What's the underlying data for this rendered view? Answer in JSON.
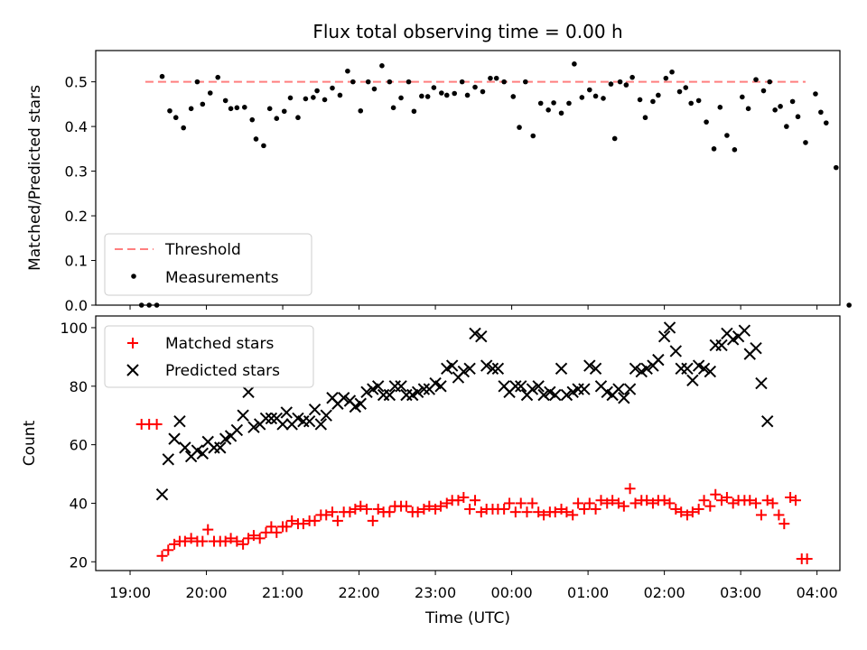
{
  "chart_data": {
    "title": "Flux total observing time = 0.00 h",
    "xlabel": "Time (UTC)",
    "x_tick_labels": [
      "19:00",
      "20:00",
      "21:00",
      "22:00",
      "23:00",
      "00:00",
      "01:00",
      "02:00",
      "03:00",
      "04:00"
    ],
    "x_range_hours": [
      18.55,
      28.3
    ],
    "top": {
      "type": "scatter",
      "ylabel": "Matched/Predicted stars",
      "ylim": [
        0,
        0.57
      ],
      "yticks": [
        "0.0",
        "0.1",
        "0.2",
        "0.3",
        "0.4",
        "0.5"
      ],
      "legend_position": "lower-left",
      "threshold": {
        "name": "Threshold",
        "value": 0.5,
        "x_range": [
          19.2,
          27.85
        ],
        "color": "#ff7f7f"
      },
      "measurements": {
        "name": "Measurements",
        "color": "#000000",
        "x": [
          19.15,
          19.25,
          19.35,
          19.42,
          19.52,
          19.6,
          19.7,
          19.8,
          19.88,
          19.95,
          20.05,
          20.15,
          20.25,
          20.32,
          20.4,
          20.5,
          20.6,
          20.65,
          20.75,
          20.83,
          20.92,
          21.02,
          21.1,
          21.2,
          21.3,
          21.4,
          21.45,
          21.55,
          21.65,
          21.75,
          21.85,
          21.92,
          22.02,
          22.12,
          22.2,
          22.3,
          22.4,
          22.45,
          22.55,
          22.65,
          22.72,
          22.82,
          22.9,
          22.98,
          23.08,
          23.15,
          23.25,
          23.35,
          23.42,
          23.52,
          23.62,
          23.72,
          23.8,
          23.9,
          24.02,
          24.1,
          24.18,
          24.28,
          24.38,
          24.48,
          24.55,
          24.65,
          24.75,
          24.82,
          24.92,
          25.02,
          25.1,
          25.2,
          25.3,
          25.35,
          25.42,
          25.5,
          25.58,
          25.68,
          25.75,
          25.85,
          25.92,
          26.02,
          26.1,
          26.2,
          26.28,
          26.35,
          26.45,
          26.55,
          26.65,
          26.73,
          26.82,
          26.92,
          27.02,
          27.1,
          27.2,
          27.3,
          27.38,
          27.45,
          27.52,
          27.6,
          27.68,
          27.75,
          27.85
        ],
        "y": [
          0.0,
          0.0,
          0.0,
          0.512,
          0.435,
          0.42,
          0.397,
          0.44,
          0.5,
          0.45,
          0.475,
          0.51,
          0.458,
          0.44,
          0.442,
          0.443,
          0.415,
          0.372,
          0.357,
          0.44,
          0.418,
          0.434,
          0.464,
          0.42,
          0.462,
          0.465,
          0.48,
          0.46,
          0.486,
          0.47,
          0.524,
          0.5,
          0.435,
          0.5,
          0.484,
          0.536,
          0.5,
          0.442,
          0.464,
          0.5,
          0.434,
          0.468,
          0.467,
          0.487,
          0.475,
          0.47,
          0.474,
          0.5,
          0.47,
          0.488,
          0.478,
          0.508,
          0.508,
          0.5,
          0.467,
          0.398,
          0.5,
          0.379,
          0.452,
          0.437,
          0.453,
          0.43,
          0.452,
          0.54,
          0.465,
          0.482,
          0.468,
          0.463,
          0.495,
          0.373,
          0.5,
          0.493,
          0.51,
          0.46,
          0.42,
          0.456,
          0.47,
          0.508,
          0.522,
          0.478,
          0.487,
          0.452,
          0.458,
          0.41,
          0.35,
          0.443,
          0.38,
          0.348,
          0.466,
          0.44,
          0.505,
          0.48,
          0.5,
          0.437,
          0.445,
          0.4,
          0.456,
          0.422,
          0.364
        ],
        "x_tail": [
          27.98,
          28.05,
          28.12,
          28.25
        ],
        "y_tail": [
          0.473,
          0.432,
          0.408,
          0.308
        ]
      }
    },
    "bottom": {
      "type": "scatter",
      "ylabel": "Count",
      "ylim": [
        17,
        104
      ],
      "yticks": [
        "20",
        "40",
        "60",
        "80",
        "100"
      ],
      "legend_position": "upper-left",
      "series": [
        {
          "name": "Matched stars",
          "marker": "plus",
          "color": "#ff0000"
        },
        {
          "name": "Predicted stars",
          "marker": "x",
          "color": "#000000"
        }
      ],
      "x": [
        19.15,
        19.25,
        19.35,
        19.42,
        19.5,
        19.58,
        19.65,
        19.72,
        19.8,
        19.88,
        19.95,
        20.02,
        20.1,
        20.18,
        20.25,
        20.32,
        20.4,
        20.48,
        20.55,
        20.62,
        20.7,
        20.78,
        20.85,
        20.92,
        21.0,
        21.05,
        21.12,
        21.2,
        21.27,
        21.35,
        21.42,
        21.5,
        21.57,
        21.65,
        21.72,
        21.8,
        21.88,
        21.95,
        22.02,
        22.1,
        22.18,
        22.25,
        22.32,
        22.4,
        22.47,
        22.55,
        22.62,
        22.7,
        22.77,
        22.85,
        22.92,
        23.0,
        23.07,
        23.15,
        23.22,
        23.3,
        23.37,
        23.45,
        23.52,
        23.6,
        23.67,
        23.75,
        23.82,
        23.9,
        23.97,
        24.05,
        24.12,
        24.2,
        24.27,
        24.35,
        24.42,
        24.5,
        24.57,
        24.65,
        24.72,
        24.8,
        24.87,
        24.95,
        25.02,
        25.1,
        25.17,
        25.25,
        25.32,
        25.4,
        25.47,
        25.55,
        25.62,
        25.7,
        25.77,
        25.85,
        25.92,
        26.0,
        26.07,
        26.15,
        26.22,
        26.3,
        26.37,
        26.45,
        26.52,
        26.6,
        26.67,
        26.75,
        26.82,
        26.9,
        26.97,
        27.05,
        27.12,
        27.2,
        27.27,
        27.35,
        27.42,
        27.5,
        27.57,
        27.65,
        27.72,
        27.8,
        27.87
      ],
      "matched": [
        67,
        67,
        67,
        22,
        24,
        26,
        27,
        27,
        28,
        27,
        27,
        31,
        27,
        27,
        27,
        28,
        27,
        26,
        28,
        29,
        28,
        30,
        32,
        30,
        32,
        32,
        34,
        33,
        33,
        34,
        34,
        36,
        36,
        37,
        34,
        37,
        37,
        38,
        39,
        38,
        34,
        38,
        37,
        37,
        39,
        39,
        39,
        37,
        37,
        38,
        39,
        38,
        39,
        40,
        41,
        41,
        42,
        38,
        41,
        37,
        38,
        38,
        38,
        38,
        40,
        37,
        40,
        37,
        40,
        37,
        36,
        37,
        37,
        38,
        37,
        36,
        40,
        38,
        40,
        38,
        41,
        40,
        41,
        40,
        39,
        45,
        40,
        41,
        41,
        40,
        41,
        41,
        40,
        38,
        37,
        36,
        37,
        38,
        41,
        39,
        43,
        41,
        42,
        40,
        41,
        41,
        41,
        40,
        36,
        41,
        40,
        36,
        33,
        42,
        41,
        21,
        21
      ],
      "predicted": [
        null,
        null,
        null,
        43,
        55,
        62,
        68,
        59,
        56,
        58,
        57,
        61,
        59,
        59,
        62,
        63,
        65,
        70,
        78,
        66,
        67,
        69,
        69,
        69,
        67,
        71,
        67,
        69,
        68,
        68,
        72,
        67,
        70,
        76,
        74,
        76,
        75,
        73,
        74,
        78,
        79,
        80,
        77,
        77,
        80,
        80,
        77,
        77,
        78,
        79,
        79,
        81,
        80,
        86,
        87,
        83,
        85,
        86,
        98,
        97,
        87,
        86,
        86,
        80,
        78,
        80,
        80,
        77,
        79,
        80,
        77,
        78,
        77,
        86,
        77,
        78,
        79,
        79,
        87,
        86,
        80,
        78,
        77,
        79,
        76,
        79,
        86,
        85,
        86,
        87,
        89,
        97,
        100,
        92,
        86,
        86,
        82,
        87,
        86,
        85,
        94,
        94,
        98,
        96,
        97,
        99,
        91,
        93,
        81,
        68,
        null,
        null,
        null,
        null,
        null,
        null,
        null
      ]
    }
  }
}
